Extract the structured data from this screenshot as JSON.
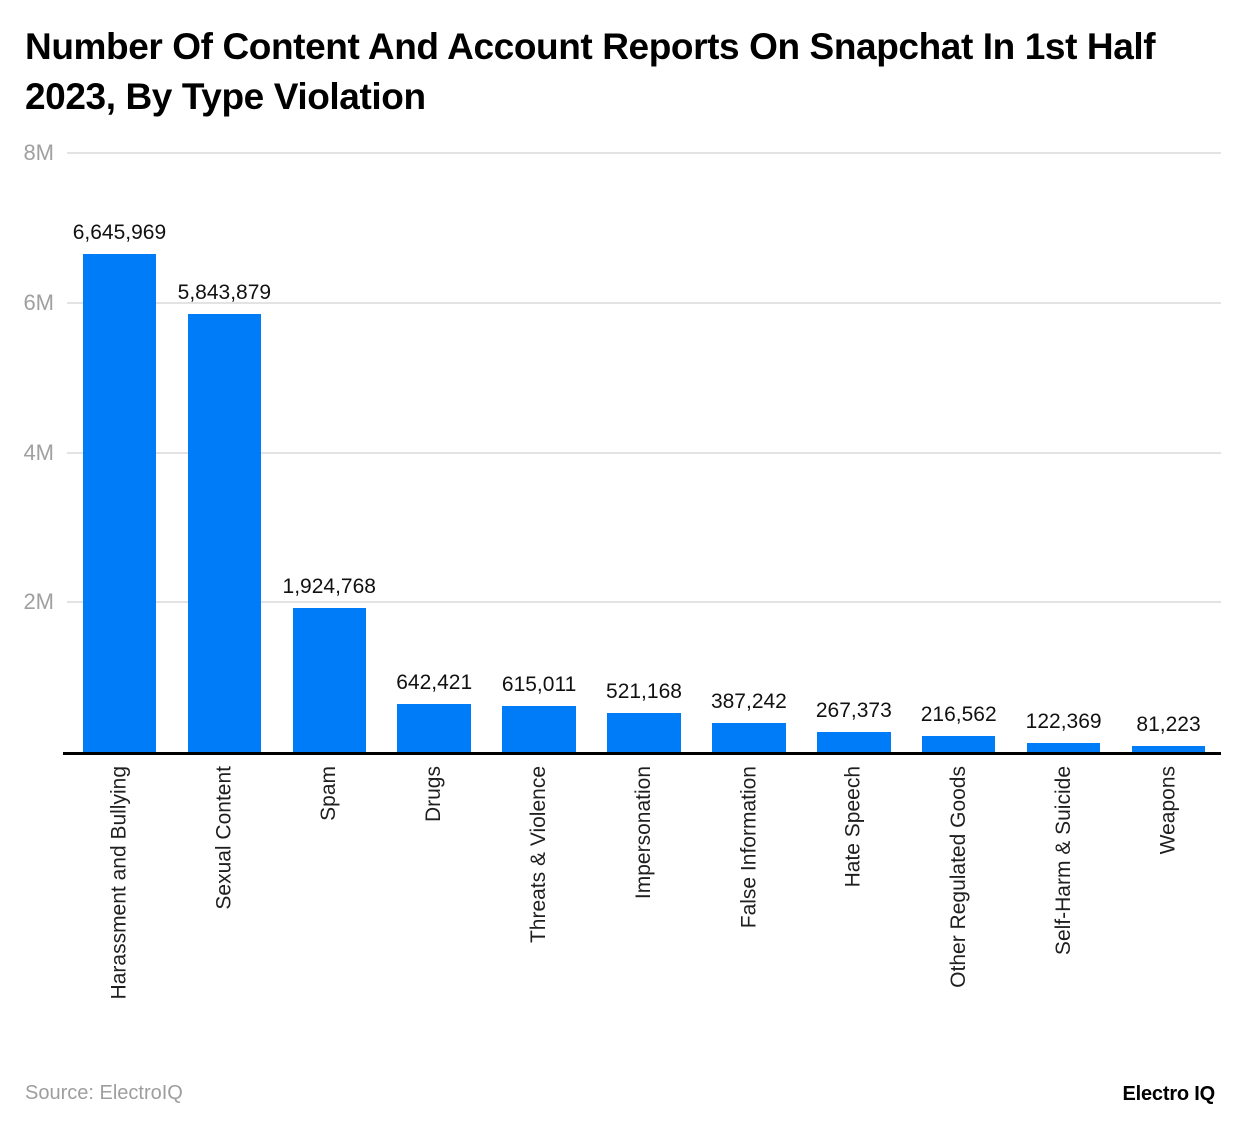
{
  "title": "Number Of Content And Account Reports On Snapchat In 1st Half 2023, By Type Violation",
  "footer": {
    "source_label": "Source: ElectroIQ",
    "brand_label": "Electro IQ"
  },
  "colors": {
    "bar": "#007cf8",
    "gridline": "#e3e3e3",
    "axis_line": "#000000",
    "y_tick_label": "#a0a0a0",
    "value_label": "#111111",
    "x_label": "#1f1f1f",
    "title": "#000000",
    "source_text": "#9e9e9e"
  },
  "chart_data": {
    "type": "bar",
    "title": "Number Of Content And Account Reports On Snapchat In 1st Half 2023, By Type Violation",
    "categories": [
      "Harassment and Bullying",
      "Sexual Content",
      "Spam",
      "Drugs",
      "Threats & Violence",
      "Impersonation",
      "False Information",
      "Hate Speech",
      "Other Regulated Goods",
      "Self-Harm & Suicide",
      "Weapons"
    ],
    "values": [
      6645969,
      5843879,
      1924768,
      642421,
      615011,
      521168,
      387242,
      267373,
      216562,
      122369,
      81223
    ],
    "value_labels": [
      "6,645,969",
      "5,843,879",
      "1,924,768",
      "642,421",
      "615,011",
      "521,168",
      "387,242",
      "267,373",
      "216,562",
      "122,369",
      "81,223"
    ],
    "xlabel": "",
    "ylabel": "",
    "ylim": [
      0,
      8000000
    ],
    "y_ticks": [
      {
        "label": "8M",
        "value": 8000000
      },
      {
        "label": "6M",
        "value": 6000000
      },
      {
        "label": "4M",
        "value": 4000000
      },
      {
        "label": "2M",
        "value": 2000000
      }
    ],
    "grid": true,
    "legend": false,
    "x_label_rotation": -90
  }
}
